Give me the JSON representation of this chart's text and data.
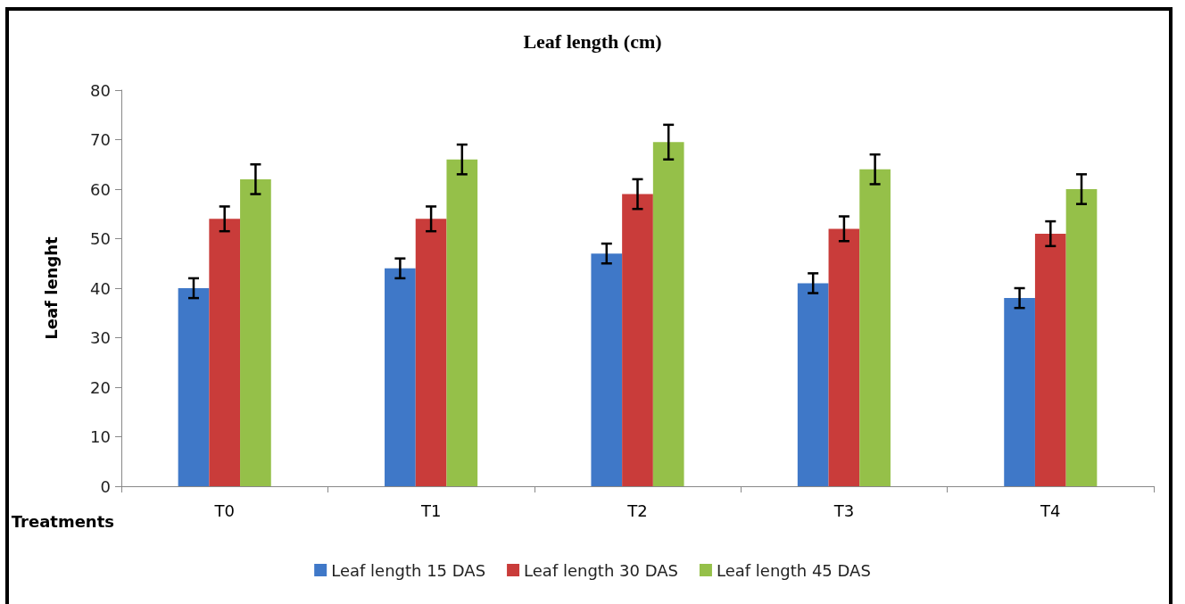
{
  "chart_data": {
    "type": "bar",
    "title": "Leaf length (cm)",
    "xlabel": "Treatments",
    "ylabel": "Leaf lenght",
    "categories": [
      "T0",
      "T1",
      "T2",
      "T3",
      "T4"
    ],
    "series": [
      {
        "name": "Leaf length 15 DAS",
        "color": "#3f78c8",
        "values": [
          40,
          44,
          47,
          41,
          38
        ],
        "errors": [
          2,
          2,
          2,
          2,
          2
        ]
      },
      {
        "name": "Leaf length 30 DAS",
        "color": "#c93c3a",
        "values": [
          54,
          54,
          59,
          52,
          51
        ],
        "errors": [
          2.5,
          2.5,
          3,
          2.5,
          2.5
        ]
      },
      {
        "name": "Leaf length 45 DAS",
        "color": "#95c049",
        "values": [
          62,
          66,
          69.5,
          64,
          60
        ],
        "errors": [
          3,
          3,
          3.5,
          3,
          3
        ]
      }
    ],
    "ylim": [
      0,
      80
    ],
    "yticks": [
      0,
      10,
      20,
      30,
      40,
      50,
      60,
      70,
      80
    ],
    "grid": false,
    "legend": "bottom"
  }
}
